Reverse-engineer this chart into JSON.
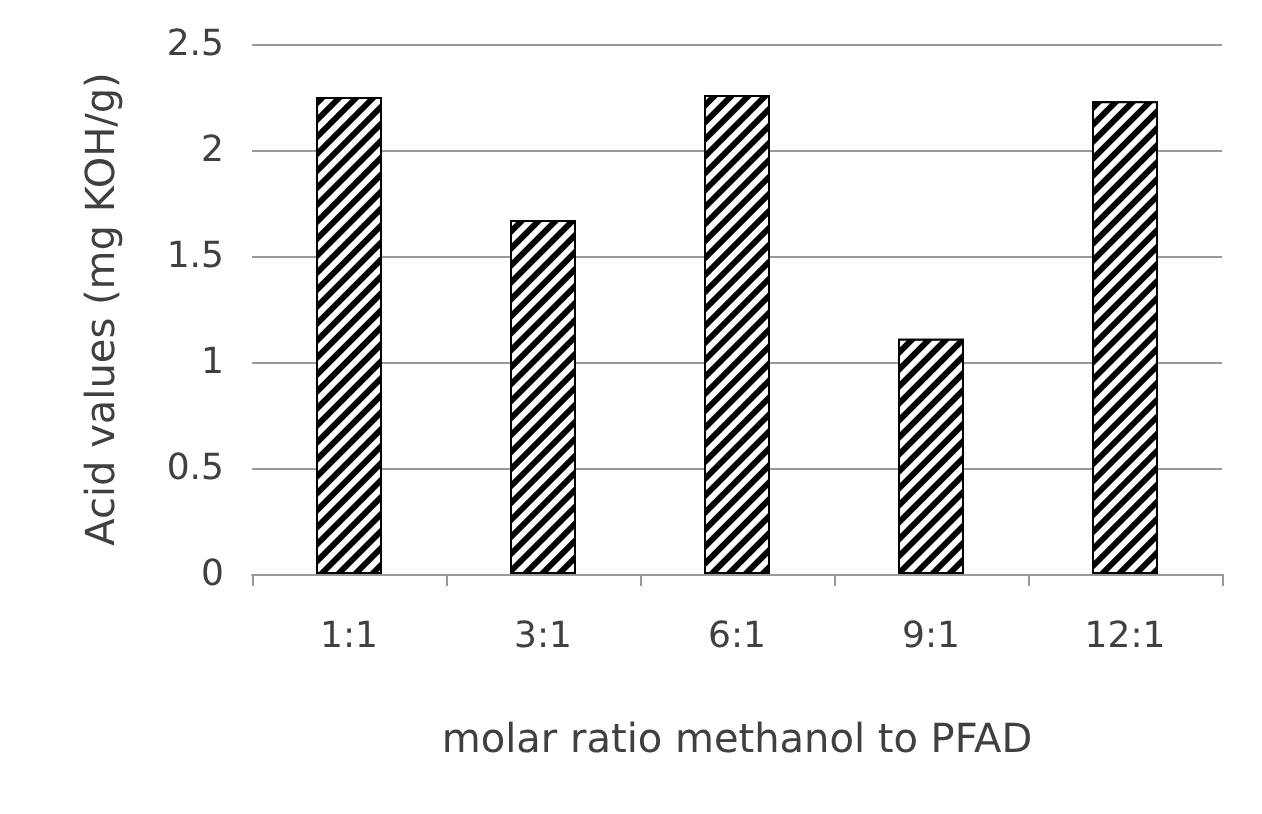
{
  "chart_data": {
    "type": "bar",
    "xlabel": "molar ratio methanol to PFAD",
    "ylabel": "Acid values (mg KOH/g)",
    "categories": [
      "1:1",
      "3:1",
      "6:1",
      "9:1",
      "12:1"
    ],
    "values": [
      2.25,
      1.67,
      2.26,
      1.11,
      2.23
    ],
    "color": "#000000",
    "ylim": [
      0,
      2.5
    ],
    "yticks": [
      0,
      0.5,
      1,
      1.5,
      2,
      2.5
    ],
    "grid": "y"
  }
}
